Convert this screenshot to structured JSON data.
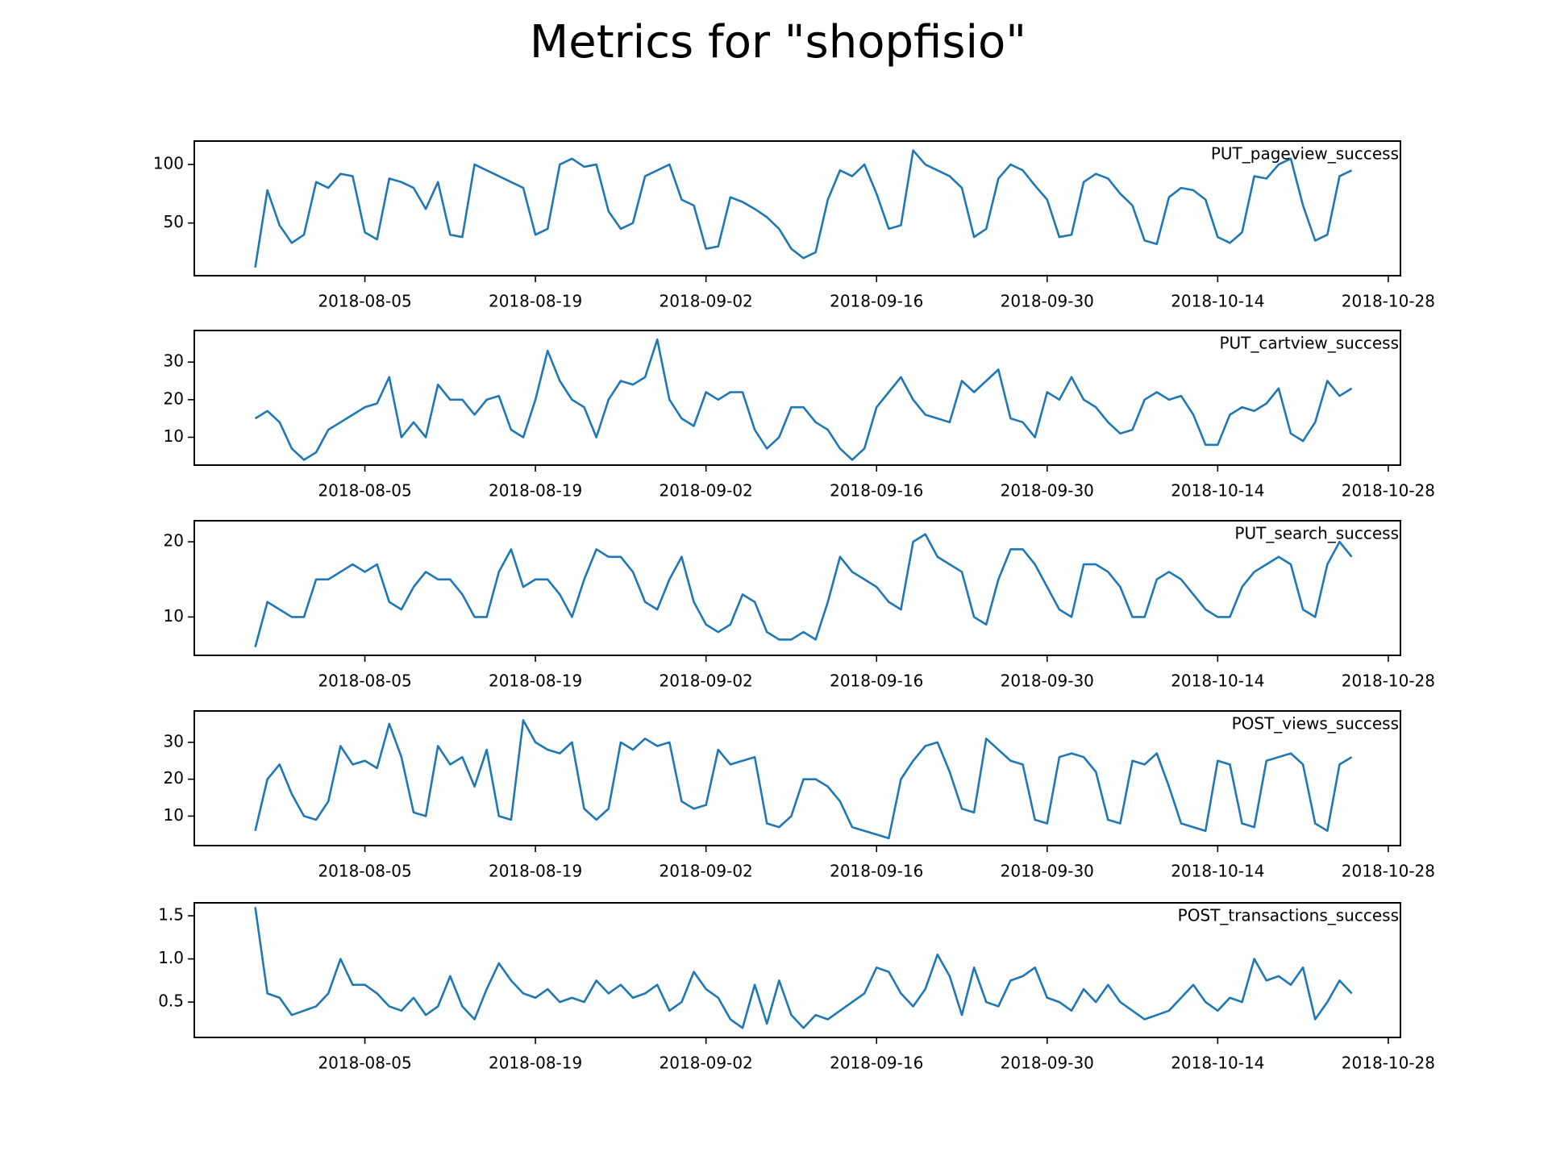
{
  "chart_data": {
    "type": "line",
    "title": "Metrics for \"shopfisio\"",
    "x": [
      "2018-07-27",
      "2018-07-28",
      "2018-07-29",
      "2018-07-30",
      "2018-07-31",
      "2018-08-01",
      "2018-08-02",
      "2018-08-03",
      "2018-08-04",
      "2018-08-05",
      "2018-08-06",
      "2018-08-07",
      "2018-08-08",
      "2018-08-09",
      "2018-08-10",
      "2018-08-11",
      "2018-08-12",
      "2018-08-13",
      "2018-08-14",
      "2018-08-15",
      "2018-08-16",
      "2018-08-17",
      "2018-08-18",
      "2018-08-19",
      "2018-08-20",
      "2018-08-21",
      "2018-08-22",
      "2018-08-23",
      "2018-08-24",
      "2018-08-25",
      "2018-08-26",
      "2018-08-27",
      "2018-08-28",
      "2018-08-29",
      "2018-08-30",
      "2018-08-31",
      "2018-09-01",
      "2018-09-02",
      "2018-09-03",
      "2018-09-04",
      "2018-09-05",
      "2018-09-06",
      "2018-09-07",
      "2018-09-08",
      "2018-09-09",
      "2018-09-10",
      "2018-09-11",
      "2018-09-12",
      "2018-09-13",
      "2018-09-14",
      "2018-09-15",
      "2018-09-16",
      "2018-09-17",
      "2018-09-18",
      "2018-09-19",
      "2018-09-20",
      "2018-09-21",
      "2018-09-22",
      "2018-09-23",
      "2018-09-24",
      "2018-09-25",
      "2018-09-26",
      "2018-09-27",
      "2018-09-28",
      "2018-09-29",
      "2018-09-30",
      "2018-10-01",
      "2018-10-02",
      "2018-10-03",
      "2018-10-04",
      "2018-10-05",
      "2018-10-06",
      "2018-10-07",
      "2018-10-08",
      "2018-10-09",
      "2018-10-10",
      "2018-10-11",
      "2018-10-12",
      "2018-10-13",
      "2018-10-14",
      "2018-10-15",
      "2018-10-16",
      "2018-10-17",
      "2018-10-18",
      "2018-10-19",
      "2018-10-20",
      "2018-10-21",
      "2018-10-22",
      "2018-10-23",
      "2018-10-24",
      "2018-10-25"
    ],
    "xlim": [
      "2018-07-22",
      "2018-10-29"
    ],
    "xticks": [
      "2018-08-05",
      "2018-08-19",
      "2018-09-02",
      "2018-09-16",
      "2018-09-30",
      "2018-10-14",
      "2018-10-28"
    ],
    "series": [
      {
        "name": "PUT_pageview_success",
        "color": "#1f77b4",
        "ylim": [
          5,
          120
        ],
        "yticks": [
          50,
          100
        ],
        "values": [
          12,
          78,
          48,
          33,
          40,
          85,
          80,
          92,
          90,
          42,
          36,
          88,
          85,
          80,
          62,
          85,
          40,
          38,
          100,
          95,
          90,
          85,
          80,
          40,
          45,
          100,
          105,
          98,
          100,
          60,
          45,
          50,
          90,
          95,
          100,
          70,
          65,
          28,
          30,
          72,
          68,
          62,
          55,
          45,
          28,
          20,
          25,
          70,
          95,
          90,
          100,
          75,
          45,
          48,
          112,
          100,
          95,
          90,
          80,
          38,
          45,
          88,
          100,
          95,
          82,
          70,
          38,
          40,
          85,
          92,
          88,
          75,
          65,
          35,
          32,
          72,
          80,
          78,
          70,
          38,
          33,
          42,
          90,
          88,
          100,
          105,
          65,
          35,
          40,
          90,
          95
        ]
      },
      {
        "name": "PUT_cartview_success",
        "color": "#1f77b4",
        "ylim": [
          2.6,
          38.4
        ],
        "yticks": [
          10,
          20,
          30
        ],
        "values": [
          15,
          17,
          14,
          7,
          4,
          6,
          12,
          14,
          16,
          18,
          19,
          26,
          10,
          14,
          10,
          24,
          20,
          20,
          16,
          20,
          21,
          12,
          10,
          20,
          33,
          25,
          20,
          18,
          10,
          20,
          25,
          24,
          26,
          36,
          20,
          15,
          13,
          22,
          20,
          22,
          22,
          12,
          7,
          10,
          18,
          18,
          14,
          12,
          7,
          4,
          7,
          18,
          22,
          26,
          20,
          16,
          15,
          14,
          25,
          22,
          25,
          28,
          15,
          14,
          10,
          22,
          20,
          26,
          20,
          18,
          14,
          11,
          12,
          20,
          22,
          20,
          21,
          16,
          8,
          8,
          16,
          18,
          17,
          19,
          23,
          11,
          9,
          14,
          25,
          21,
          23
        ]
      },
      {
        "name": "PUT_search_success",
        "color": "#1f77b4",
        "ylim": [
          4.9,
          22.8
        ],
        "yticks": [
          10,
          20
        ],
        "values": [
          6,
          12,
          11,
          10,
          10,
          15,
          15,
          16,
          17,
          16,
          17,
          12,
          11,
          14,
          16,
          15,
          15,
          13,
          10,
          10,
          16,
          19,
          14,
          15,
          15,
          13,
          10,
          15,
          19,
          18,
          18,
          16,
          12,
          11,
          15,
          18,
          12,
          9,
          8,
          9,
          13,
          12,
          8,
          7,
          7,
          8,
          7,
          12,
          18,
          16,
          15,
          14,
          12,
          11,
          20,
          21,
          18,
          17,
          16,
          10,
          9,
          15,
          19,
          19,
          17,
          14,
          11,
          10,
          17,
          17,
          16,
          14,
          10,
          10,
          15,
          16,
          15,
          13,
          11,
          10,
          10,
          14,
          16,
          17,
          18,
          17,
          11,
          10,
          17,
          20,
          18
        ]
      },
      {
        "name": "POST_views_success",
        "color": "#1f77b4",
        "ylim": [
          2,
          38.5
        ],
        "yticks": [
          10,
          20,
          30
        ],
        "values": [
          6,
          20,
          24,
          16,
          10,
          9,
          14,
          29,
          24,
          25,
          23,
          35,
          26,
          11,
          10,
          29,
          24,
          26,
          18,
          28,
          10,
          9,
          36,
          30,
          28,
          27,
          30,
          12,
          9,
          12,
          30,
          28,
          31,
          29,
          30,
          14,
          12,
          13,
          28,
          24,
          25,
          26,
          8,
          7,
          10,
          20,
          20,
          18,
          14,
          7,
          6,
          5,
          4,
          20,
          25,
          29,
          30,
          22,
          12,
          11,
          31,
          28,
          25,
          24,
          9,
          8,
          26,
          27,
          26,
          22,
          9,
          8,
          25,
          24,
          27,
          18,
          8,
          7,
          6,
          25,
          24,
          8,
          7,
          25,
          26,
          27,
          24,
          8,
          6,
          24,
          26
        ]
      },
      {
        "name": "POST_transactions_success",
        "color": "#1f77b4",
        "ylim": [
          0.09,
          1.65
        ],
        "yticks": [
          0.5,
          {
            "value": 1,
            "label": "1.0"
          },
          1.5
        ],
        "values": [
          1.6,
          0.6,
          0.55,
          0.35,
          0.4,
          0.45,
          0.6,
          1.0,
          0.7,
          0.7,
          0.6,
          0.45,
          0.4,
          0.55,
          0.35,
          0.45,
          0.8,
          0.45,
          0.3,
          0.65,
          0.95,
          0.75,
          0.6,
          0.55,
          0.65,
          0.5,
          0.55,
          0.5,
          0.75,
          0.6,
          0.7,
          0.55,
          0.6,
          0.7,
          0.4,
          0.5,
          0.85,
          0.65,
          0.55,
          0.3,
          0.2,
          0.7,
          0.25,
          0.75,
          0.35,
          0.2,
          0.35,
          0.3,
          0.4,
          0.5,
          0.6,
          0.9,
          0.85,
          0.6,
          0.45,
          0.65,
          1.05,
          0.8,
          0.35,
          0.9,
          0.5,
          0.45,
          0.75,
          0.8,
          0.9,
          0.55,
          0.5,
          0.4,
          0.65,
          0.5,
          0.7,
          0.5,
          0.4,
          0.3,
          0.35,
          0.4,
          0.55,
          0.7,
          0.5,
          0.4,
          0.55,
          0.5,
          1.0,
          0.75,
          0.8,
          0.7,
          0.9,
          0.3,
          0.5,
          0.75,
          0.6
        ]
      }
    ]
  }
}
